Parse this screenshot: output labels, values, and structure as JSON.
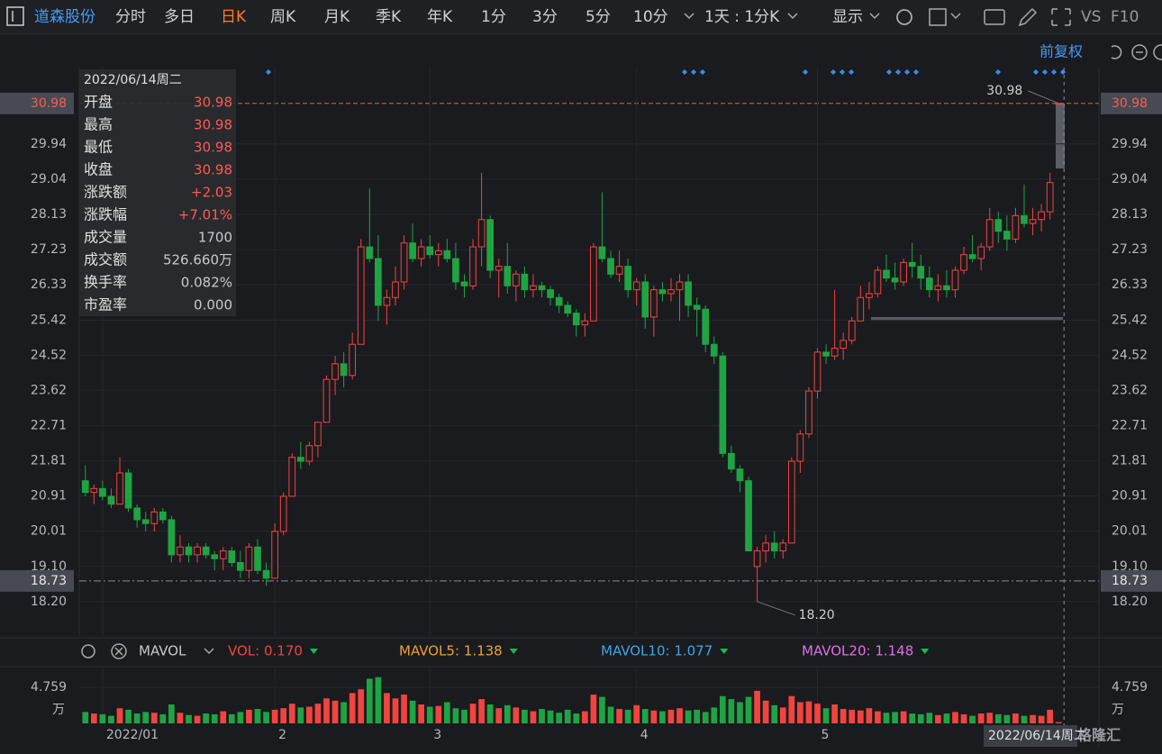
{
  "toolbar": {
    "stock": "道森股份",
    "periods": [
      "分时",
      "多日",
      "日K",
      "周K",
      "月K",
      "季K",
      "年K",
      "1分",
      "3分",
      "5分",
      "10分"
    ],
    "active": 2,
    "range": "1天 : 1分K",
    "display": "显示",
    "vs": "VS",
    "f10": "F10"
  },
  "adjust": "前复权",
  "tooltip": {
    "date": "2022/06/14周二",
    "rows": [
      {
        "label": "开盘",
        "value": "30.98"
      },
      {
        "label": "最高",
        "value": "30.98"
      },
      {
        "label": "最低",
        "value": "30.98"
      },
      {
        "label": "收盘",
        "value": "30.98"
      },
      {
        "label": "涨跌额",
        "value": "+2.03"
      },
      {
        "label": "涨跌幅",
        "value": "+7.01%"
      },
      {
        "label": "成交量",
        "value": "1700"
      },
      {
        "label": "成交额",
        "value": "526.660万"
      },
      {
        "label": "换手率",
        "value": "0.082%"
      },
      {
        "label": "市盈率",
        "value": "0.000"
      }
    ]
  },
  "chart_data": {
    "type": "candlestick",
    "categories": [
      null,
      null,
      "2022/01",
      null,
      null,
      null,
      null,
      null,
      null,
      null,
      null,
      null,
      null,
      null,
      null,
      null,
      null,
      null,
      null,
      null,
      null,
      null,
      "2",
      null,
      null,
      null,
      null,
      null,
      null,
      null,
      null,
      null,
      null,
      null,
      null,
      null,
      null,
      null,
      null,
      null,
      "3",
      null,
      null,
      null,
      null,
      null,
      null,
      null,
      null,
      null,
      null,
      null,
      null,
      null,
      null,
      null,
      null,
      null,
      null,
      null,
      null,
      null,
      null,
      null,
      "4",
      null,
      null,
      null,
      null,
      null,
      null,
      null,
      null,
      null,
      null,
      null,
      null,
      null,
      null,
      null,
      null,
      null,
      null,
      null,
      null,
      "5",
      null,
      null,
      null,
      null,
      null,
      null,
      null,
      null,
      null,
      null,
      null,
      null,
      null,
      null,
      null,
      null,
      null,
      null,
      null,
      null,
      null,
      null,
      null,
      null,
      null,
      null,
      null,
      "2022/06/14周二"
    ],
    "open": [
      21.3,
      21.0,
      21.1,
      20.9,
      20.7,
      21.5,
      20.6,
      20.3,
      20.2,
      20.5,
      20.3,
      19.4,
      19.6,
      19.4,
      19.6,
      19.4,
      19.3,
      19.5,
      19.2,
      19.0,
      19.6,
      19.0,
      18.8,
      20.0,
      20.9,
      21.9,
      21.8,
      22.2,
      22.8,
      23.9,
      24.3,
      24.0,
      24.8,
      27.3,
      27.0,
      25.8,
      26.0,
      26.4,
      27.4,
      27.0,
      27.3,
      27.1,
      27.2,
      27.0,
      26.4,
      26.3,
      27.3,
      28.0,
      26.7,
      26.8,
      26.3,
      26.6,
      26.2,
      26.3,
      26.2,
      26.0,
      25.8,
      25.6,
      25.3,
      25.4,
      27.3,
      27.0,
      26.6,
      26.8,
      26.2,
      26.4,
      25.5,
      26.2,
      26.1,
      26.2,
      26.4,
      25.8,
      25.7,
      24.8,
      24.5,
      22.0,
      21.6,
      21.3,
      19.1,
      19.5,
      19.7,
      19.5,
      19.7,
      21.8,
      22.5,
      23.6,
      24.6,
      24.5,
      24.7,
      24.9,
      25.4,
      26.0,
      26.1,
      26.7,
      26.5,
      26.4,
      26.9,
      26.8,
      26.5,
      26.2,
      26.3,
      26.2,
      26.7,
      27.1,
      27.0,
      27.3,
      28.0,
      27.7,
      27.5,
      28.1,
      27.9,
      28.0,
      28.2,
      30.98
    ],
    "high": [
      21.7,
      21.2,
      21.3,
      21.1,
      21.9,
      21.6,
      20.7,
      20.5,
      20.6,
      20.6,
      20.4,
      19.9,
      19.7,
      19.7,
      19.7,
      19.5,
      19.6,
      19.6,
      19.5,
      19.7,
      19.8,
      19.2,
      20.2,
      21.0,
      22.0,
      22.3,
      22.3,
      22.8,
      24.0,
      24.5,
      24.6,
      25.1,
      27.5,
      28.8,
      27.6,
      26.2,
      26.8,
      27.6,
      27.9,
      27.5,
      27.6,
      27.4,
      27.5,
      27.4,
      26.6,
      27.5,
      29.2,
      28.1,
      27.0,
      27.4,
      26.7,
      26.8,
      26.6,
      26.4,
      26.3,
      26.1,
      25.9,
      25.7,
      25.6,
      27.4,
      28.7,
      27.2,
      27.2,
      27.0,
      26.5,
      26.6,
      26.3,
      26.4,
      26.5,
      26.6,
      26.6,
      26.0,
      25.8,
      25.0,
      24.6,
      22.2,
      21.7,
      21.4,
      19.6,
      19.9,
      20.0,
      19.8,
      21.9,
      22.6,
      23.7,
      24.7,
      24.8,
      26.2,
      25.1,
      25.5,
      26.3,
      26.4,
      26.8,
      27.1,
      26.9,
      27.0,
      27.4,
      27.1,
      26.8,
      26.6,
      26.7,
      26.8,
      27.3,
      27.6,
      27.4,
      28.3,
      28.2,
      28.1,
      28.3,
      28.9,
      28.3,
      28.4,
      29.2,
      30.98
    ],
    "low": [
      20.9,
      20.7,
      20.8,
      20.6,
      20.7,
      20.5,
      20.1,
      20.0,
      20.0,
      20.2,
      19.2,
      19.2,
      19.2,
      19.2,
      19.3,
      19.0,
      19.0,
      19.1,
      18.8,
      18.8,
      18.9,
      18.6,
      18.8,
      19.9,
      20.9,
      21.6,
      21.7,
      21.9,
      22.8,
      23.5,
      23.7,
      23.9,
      24.8,
      26.9,
      25.4,
      25.3,
      25.8,
      26.2,
      26.9,
      26.8,
      27.0,
      26.8,
      26.9,
      26.2,
      26.0,
      26.2,
      26.8,
      26.5,
      26.0,
      26.1,
      25.9,
      26.0,
      26.0,
      26.0,
      25.8,
      25.6,
      25.5,
      25.0,
      25.0,
      25.4,
      26.9,
      26.5,
      26.4,
      26.0,
      25.8,
      25.2,
      25.0,
      25.9,
      25.9,
      25.4,
      25.5,
      25.0,
      24.6,
      24.3,
      21.9,
      21.5,
      21.0,
      19.5,
      18.2,
      19.2,
      19.3,
      19.3,
      19.7,
      21.5,
      22.4,
      23.4,
      24.3,
      24.4,
      24.4,
      24.8,
      25.4,
      25.7,
      26.0,
      26.4,
      26.2,
      26.3,
      26.5,
      26.2,
      26.0,
      25.9,
      26.0,
      26.0,
      26.6,
      26.9,
      26.7,
      27.2,
      27.4,
      27.2,
      27.4,
      27.8,
      27.6,
      27.7,
      28.0,
      30.98
    ],
    "close": [
      21.0,
      21.1,
      20.9,
      20.7,
      21.5,
      20.6,
      20.3,
      20.2,
      20.5,
      20.3,
      19.4,
      19.6,
      19.4,
      19.6,
      19.4,
      19.3,
      19.5,
      19.2,
      19.0,
      19.6,
      19.0,
      18.8,
      20.0,
      20.9,
      21.9,
      21.8,
      22.2,
      22.8,
      23.9,
      24.3,
      24.0,
      24.8,
      27.3,
      27.0,
      25.8,
      26.0,
      26.4,
      27.4,
      27.0,
      27.3,
      27.1,
      27.2,
      27.0,
      26.4,
      26.3,
      27.3,
      28.0,
      26.7,
      26.8,
      26.3,
      26.6,
      26.2,
      26.3,
      26.2,
      26.0,
      25.8,
      25.6,
      25.3,
      25.4,
      27.3,
      27.0,
      26.6,
      26.8,
      26.2,
      26.4,
      25.5,
      26.2,
      26.1,
      26.2,
      26.4,
      25.8,
      25.7,
      24.8,
      24.5,
      22.0,
      21.6,
      21.3,
      19.5,
      19.5,
      19.7,
      19.5,
      19.7,
      21.8,
      22.5,
      23.6,
      24.6,
      24.5,
      24.7,
      24.9,
      25.4,
      26.0,
      26.1,
      26.7,
      26.5,
      26.4,
      26.9,
      26.8,
      26.5,
      26.2,
      26.3,
      26.2,
      26.7,
      27.1,
      27.0,
      27.3,
      28.0,
      27.7,
      27.5,
      28.1,
      27.9,
      28.0,
      28.2,
      28.95,
      30.98
    ],
    "up_color": "#f2443f",
    "down_color": "#1fa443",
    "ylim": [
      17.34,
      31.9
    ],
    "yticks": [
      29.94,
      29.04,
      28.13,
      27.23,
      26.33,
      25.42,
      24.52,
      23.62,
      22.71,
      21.81,
      20.91,
      20.01,
      {
        "value": 19.1,
        "label": "19.10"
      },
      {
        "value": 18.2,
        "label": "18.20"
      }
    ],
    "price_markers": [
      30.98,
      18.73
    ],
    "annotations": [
      {
        "index": 113,
        "value": 30.98
      },
      {
        "index": 78,
        "value": 18.2,
        "label": "18.20"
      }
    ],
    "grid": true,
    "volume": {
      "indicator": "MAVOL",
      "legend": [
        {
          "text": "VOL: 0.170",
          "color": "#f2443f"
        },
        {
          "text": "MAVOL5: 1.138",
          "color": "#f0a030"
        },
        {
          "text": "MAVOL10: 1.077",
          "color": "#3aa8e8"
        },
        {
          "text": "MAVOL20: 1.148",
          "color": "#e070e8"
        }
      ],
      "values": [
        1.5,
        1.3,
        1.2,
        1.0,
        2.0,
        1.8,
        1.3,
        1.5,
        1.4,
        1.2,
        2.5,
        1.4,
        1.1,
        1.0,
        1.3,
        1.2,
        1.6,
        1.2,
        1.5,
        1.8,
        1.9,
        1.5,
        1.8,
        2.0,
        2.6,
        2.1,
        2.2,
        2.6,
        3.3,
        3.0,
        2.8,
        4.0,
        4.5,
        5.9,
        6.1,
        4.0,
        3.3,
        3.8,
        3.0,
        2.5,
        2.2,
        2.3,
        2.8,
        2.0,
        1.8,
        2.6,
        3.2,
        2.5,
        2.0,
        2.4,
        2.1,
        1.8,
        1.6,
        1.9,
        1.7,
        1.4,
        1.8,
        1.3,
        1.6,
        3.8,
        3.5,
        2.2,
        1.9,
        1.8,
        2.4,
        1.9,
        1.7,
        1.6,
        1.8,
        2.0,
        1.7,
        1.8,
        1.5,
        2.1,
        3.6,
        3.2,
        2.8,
        3.5,
        4.3,
        3.0,
        2.4,
        2.1,
        3.6,
        2.8,
        2.9,
        2.6,
        2.0,
        2.5,
        1.9,
        1.8,
        1.7,
        2.0,
        1.6,
        1.4,
        1.5,
        1.6,
        1.3,
        1.2,
        1.4,
        1.1,
        1.3,
        1.5,
        1.2,
        1.0,
        1.3,
        1.4,
        1.2,
        1.1,
        1.3,
        1.0,
        1.1,
        1.0,
        1.8,
        0.17
      ],
      "ylim": [
        0,
        6.9
      ],
      "yticks": [
        4.759
      ],
      "unit": "万"
    }
  },
  "watermark": "格隆汇"
}
